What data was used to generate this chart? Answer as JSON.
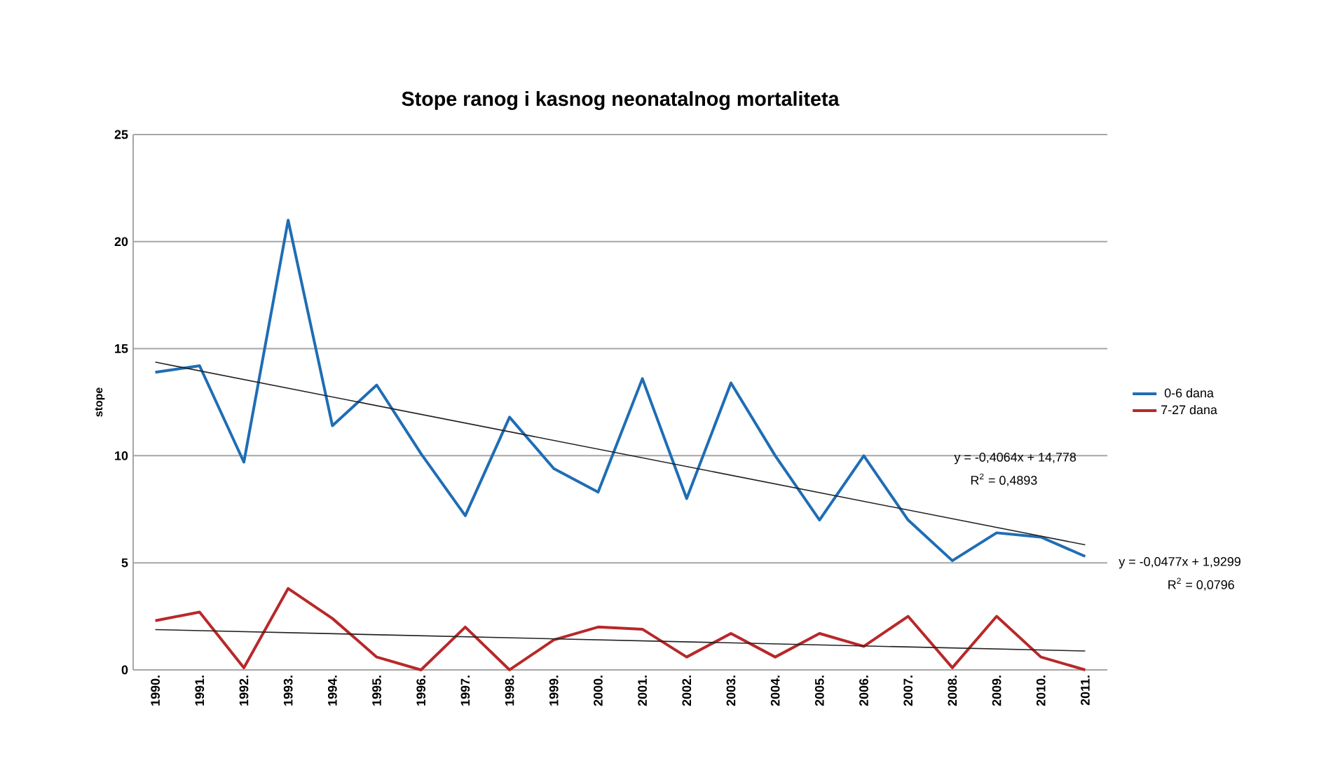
{
  "chart_data": {
    "type": "line",
    "title": "Stope ranog i kasnog neonatalnog mortaliteta",
    "ylabel": "stope",
    "categories": [
      "1990.",
      "1991.",
      "1992.",
      "1993.",
      "1994.",
      "1995.",
      "1996.",
      "1997.",
      "1998.",
      "1999.",
      "2000.",
      "2001.",
      "2002.",
      "2003.",
      "2004.",
      "2005.",
      "2006.",
      "2007.",
      "2008.",
      "2009.",
      "2010.",
      "2011."
    ],
    "series": [
      {
        "name": "0-6 dana",
        "color": "#1f6db5",
        "values": [
          13.9,
          14.2,
          9.7,
          21.0,
          11.4,
          13.3,
          10.1,
          7.2,
          11.8,
          9.4,
          8.3,
          13.6,
          8.0,
          13.4,
          10.0,
          7.0,
          10.0,
          7.0,
          5.1,
          6.4,
          6.2,
          5.3
        ]
      },
      {
        "name": "7-27 dana",
        "color": "#b8282a",
        "values": [
          2.3,
          2.7,
          0.1,
          3.8,
          2.4,
          0.6,
          0.0,
          2.0,
          0.0,
          1.4,
          2.0,
          1.9,
          0.6,
          1.7,
          0.6,
          1.7,
          1.1,
          2.5,
          0.1,
          2.5,
          0.6,
          0.0
        ]
      },
      {
        "type": "line",
        "color": "#222222",
        "x": [
          "1990.",
          "2011."
        ],
        "values": [
          14.37,
          5.84
        ]
      },
      {
        "type": "line",
        "color": "#222222",
        "x": [
          "1990.",
          "2011."
        ],
        "values": [
          1.88,
          0.88
        ]
      }
    ],
    "annotations": [
      "y = -0,4064x + 14,778",
      "R$^{2}$ = 0,4893",
      "y = -0,0477x + 1,9299",
      "R$^{2}$ = 0,0796"
    ],
    "ylim": [
      0,
      25
    ],
    "yticks": [
      0,
      5,
      10,
      15,
      20,
      25
    ],
    "grid": "y",
    "legend": "right",
    "marker": "none",
    "line_style": "solid"
  }
}
